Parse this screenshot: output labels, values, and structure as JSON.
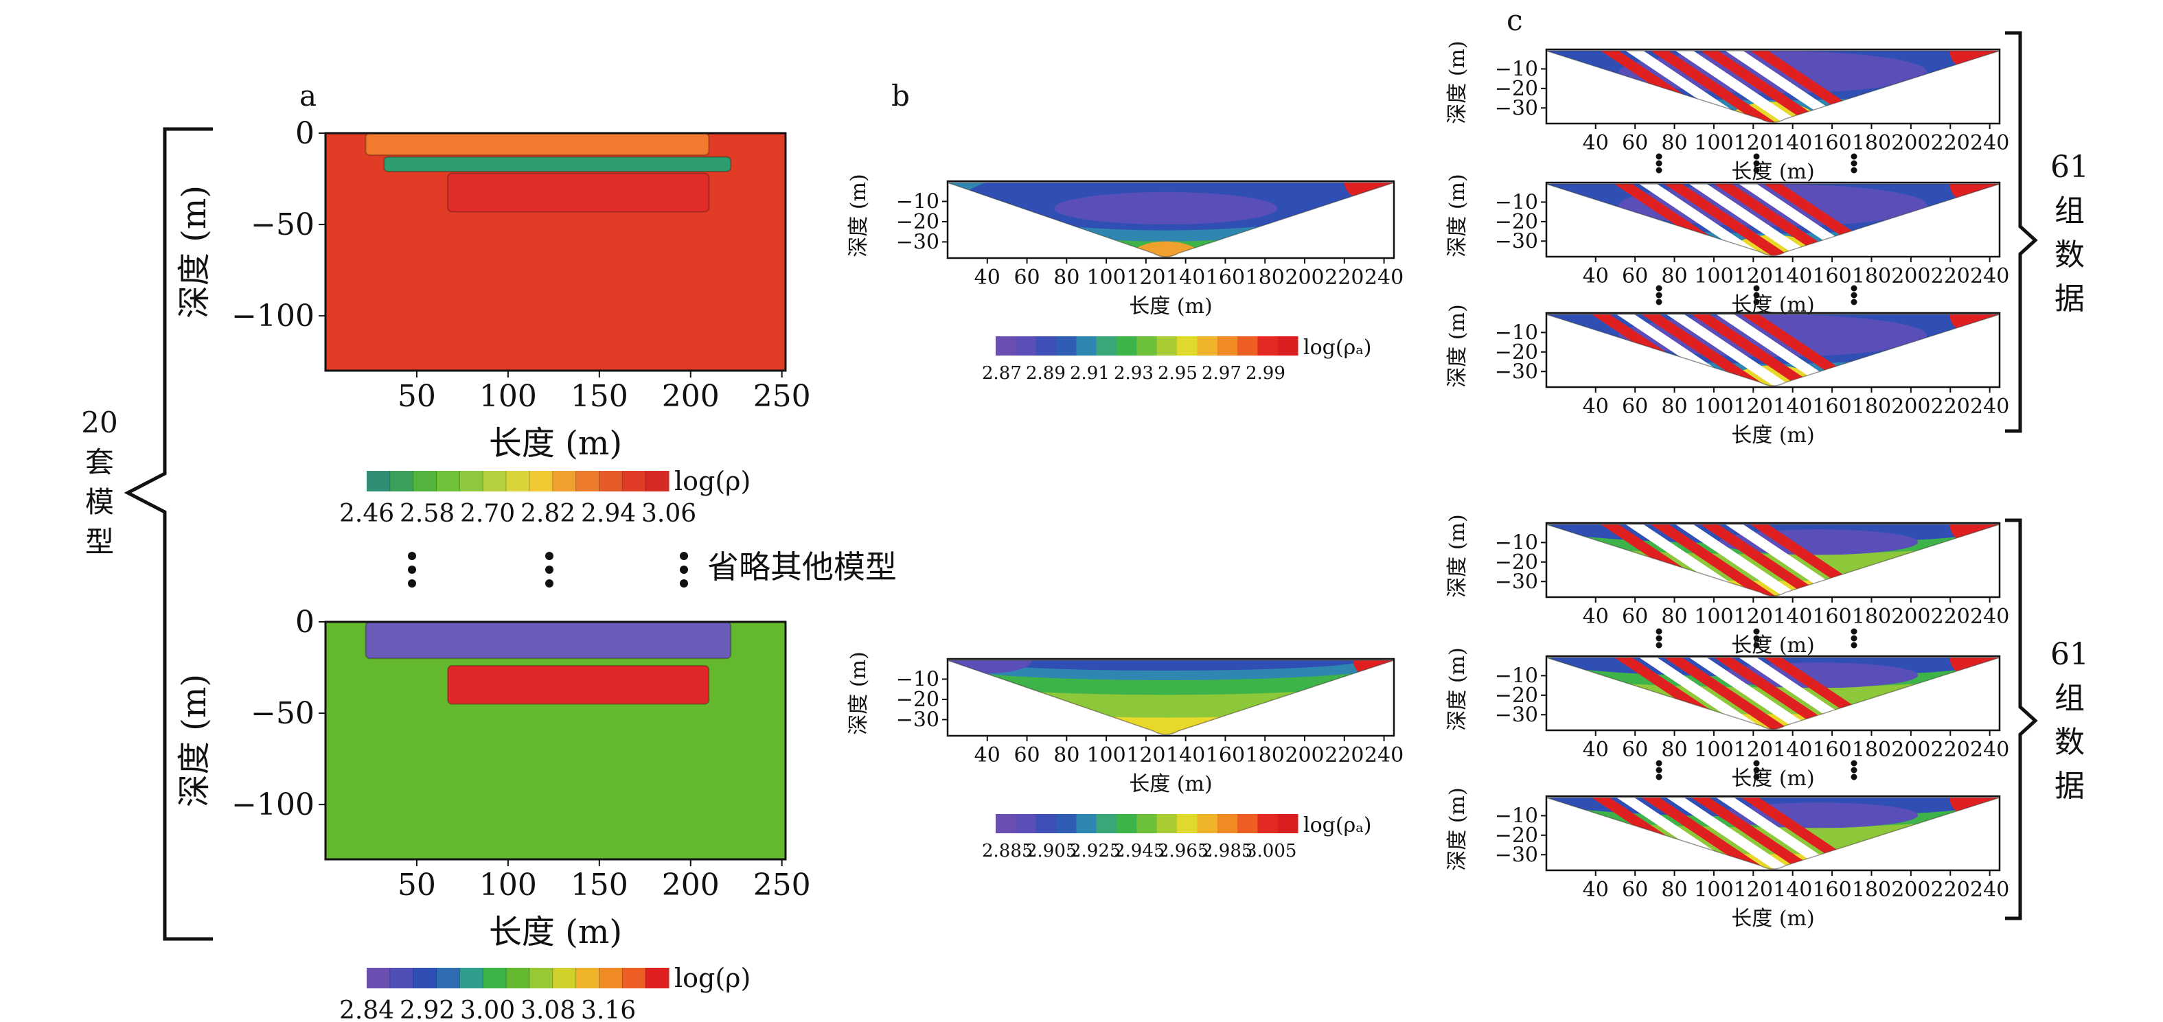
{
  "panel_labels": {
    "a": "a",
    "b": "b",
    "c": "c"
  },
  "annotations": {
    "models_count": [
      "20",
      "套",
      "模",
      "型"
    ],
    "omitted_models": "省略其他模型",
    "group_data_1": [
      "61",
      "组",
      "数",
      "据"
    ],
    "group_data_2": [
      "61",
      "组",
      "数",
      "据"
    ]
  },
  "colors": {
    "model1_background": "#e03c26",
    "model1_top_layer": "#f07a2d",
    "model1_thin_layer": "#2f9e6e",
    "model1_block": "#e02d2a",
    "model2_background": "#64b82e",
    "model2_top_layer": "#6a5bb8",
    "model2_block": "#e0282a",
    "purple": "#6a4fb0",
    "blue": "#2f4fb4",
    "green": "#3db34a",
    "yellow": "#e8e020",
    "orange": "#f08a22",
    "red": "#e02020"
  },
  "chart_data": [
    {
      "id": "a-top",
      "type": "heatmap",
      "description_units": "resistivity model",
      "xlabel": "长度 (m)",
      "ylabel": "深度 (m)",
      "xlim": [
        0,
        252
      ],
      "ylim": [
        -130,
        0
      ],
      "xticks": [
        50,
        100,
        150,
        200,
        250
      ],
      "yticks": [
        0,
        -50,
        -100
      ],
      "xtick_labels": [
        "50",
        "100",
        "150",
        "200",
        "250"
      ],
      "ytick_labels": [
        "0",
        "−50",
        "−100"
      ],
      "colorbar": {
        "label": "log(ρ)",
        "tick_labels": [
          "2.46",
          "2.58",
          "2.70",
          "2.82",
          "2.94",
          "3.06"
        ],
        "colors": [
          "#2f8e74",
          "#3aa05a",
          "#52b43c",
          "#6ec138",
          "#8ec83c",
          "#b4d03c",
          "#d8d43a",
          "#f0c832",
          "#f0a02c",
          "#ec7c2c",
          "#e65a2a",
          "#e03c26",
          "#d82a24"
        ]
      },
      "bodies": [
        {
          "name": "top layer",
          "x": [
            22,
            210
          ],
          "depth": [
            0,
            -12
          ],
          "color_key": "model1_top_layer"
        },
        {
          "name": "thin layer",
          "x": [
            32,
            222
          ],
          "depth": [
            -13,
            -21
          ],
          "color_key": "model1_thin_layer"
        },
        {
          "name": "block",
          "x": [
            67,
            210
          ],
          "depth": [
            -22,
            -43
          ],
          "color_key": "model1_block"
        }
      ]
    },
    {
      "id": "a-bottom",
      "type": "heatmap",
      "xlabel": "长度 (m)",
      "ylabel": "深度 (m)",
      "xlim": [
        0,
        252
      ],
      "ylim": [
        -130,
        0
      ],
      "xticks": [
        50,
        100,
        150,
        200,
        250
      ],
      "yticks": [
        0,
        -50,
        -100
      ],
      "xtick_labels": [
        "50",
        "100",
        "150",
        "200",
        "250"
      ],
      "ytick_labels": [
        "0",
        "−50",
        "−100"
      ],
      "colorbar": {
        "label": "log(ρ)",
        "tick_labels": [
          "2.84",
          "2.92",
          "3.00",
          "3.08",
          "3.16"
        ],
        "colors": [
          "#6a4fb0",
          "#4f4fb8",
          "#2f4fb4",
          "#2f6cb0",
          "#2f9e8c",
          "#3db34a",
          "#64b82e",
          "#98c834",
          "#d0d02c",
          "#f0b42c",
          "#f08a22",
          "#ec5e24",
          "#e02020"
        ]
      },
      "bodies": [
        {
          "name": "top layer",
          "x": [
            22,
            222
          ],
          "depth": [
            0,
            -20
          ],
          "color_key": "model2_top_layer"
        },
        {
          "name": "block",
          "x": [
            67,
            210
          ],
          "depth": [
            -24,
            -45
          ],
          "color_key": "model2_block"
        }
      ]
    },
    {
      "id": "b-top",
      "type": "heatmap",
      "description_units": "apparent resistivity pseudo-section",
      "xlabel": "长度 (m)",
      "ylabel": "深度 (m)",
      "xlim": [
        20,
        245
      ],
      "ylim": [
        -38,
        0
      ],
      "xticks": [
        40,
        60,
        80,
        100,
        120,
        140,
        160,
        180,
        200,
        220,
        240
      ],
      "yticks": [
        -10,
        -20,
        -30
      ],
      "xtick_labels": [
        "40",
        "60",
        "80",
        "100",
        "120",
        "140",
        "160",
        "180",
        "200",
        "220",
        "240"
      ],
      "ytick_labels": [
        "−10",
        "−20",
        "−30"
      ],
      "colorbar": {
        "label": "log(ρₐ)",
        "tick_labels": [
          "2.87",
          "2.89",
          "2.91",
          "2.93",
          "2.95",
          "2.97",
          "2.99"
        ],
        "colors": [
          "#6a4fb0",
          "#5a4fb8",
          "#3f4fb8",
          "#2f5cb4",
          "#2f86b0",
          "#38a878",
          "#3db34a",
          "#6cc03a",
          "#a8cc32",
          "#e0d82a",
          "#f0b42c",
          "#f08a22",
          "#ec5e24",
          "#e22a22",
          "#d81e1e"
        ]
      }
    },
    {
      "id": "b-bottom",
      "type": "heatmap",
      "xlabel": "长度 (m)",
      "ylabel": "深度 (m)",
      "xlim": [
        20,
        245
      ],
      "ylim": [
        -38,
        0
      ],
      "xticks": [
        40,
        60,
        80,
        100,
        120,
        140,
        160,
        180,
        200,
        220,
        240
      ],
      "yticks": [
        -10,
        -20,
        -30
      ],
      "xtick_labels": [
        "40",
        "60",
        "80",
        "100",
        "120",
        "140",
        "160",
        "180",
        "200",
        "220",
        "240"
      ],
      "ytick_labels": [
        "−10",
        "−20",
        "−30"
      ],
      "colorbar": {
        "label": "log(ρₐ)",
        "tick_labels": [
          "2.885",
          "2.905",
          "2.925",
          "2.945",
          "2.965",
          "2.985",
          "3.005"
        ],
        "colors": [
          "#6a4fb0",
          "#5a4fb8",
          "#3f4fb8",
          "#2f5cb4",
          "#2f86b0",
          "#38a878",
          "#3db34a",
          "#6cc03a",
          "#a8cc32",
          "#e0d82a",
          "#f0b42c",
          "#f08a22",
          "#ec5e24",
          "#e22a22",
          "#d81e1e"
        ]
      }
    },
    {
      "id": "c-sections",
      "type": "heatmap",
      "count": 6,
      "xlabel": "长度 (m)",
      "ylabel": "深度 (m)",
      "xlim": [
        15,
        245
      ],
      "ylim": [
        -38,
        0
      ],
      "xticks": [
        40,
        60,
        80,
        100,
        120,
        140,
        160,
        180,
        200,
        220,
        240
      ],
      "yticks": [
        -10,
        -20,
        -30
      ],
      "xtick_labels": [
        "40",
        "60",
        "80",
        "100",
        "120",
        "140",
        "160",
        "180",
        "200",
        "220",
        "240"
      ],
      "ytick_labels": [
        "−10",
        "−20",
        "−30"
      ]
    }
  ]
}
